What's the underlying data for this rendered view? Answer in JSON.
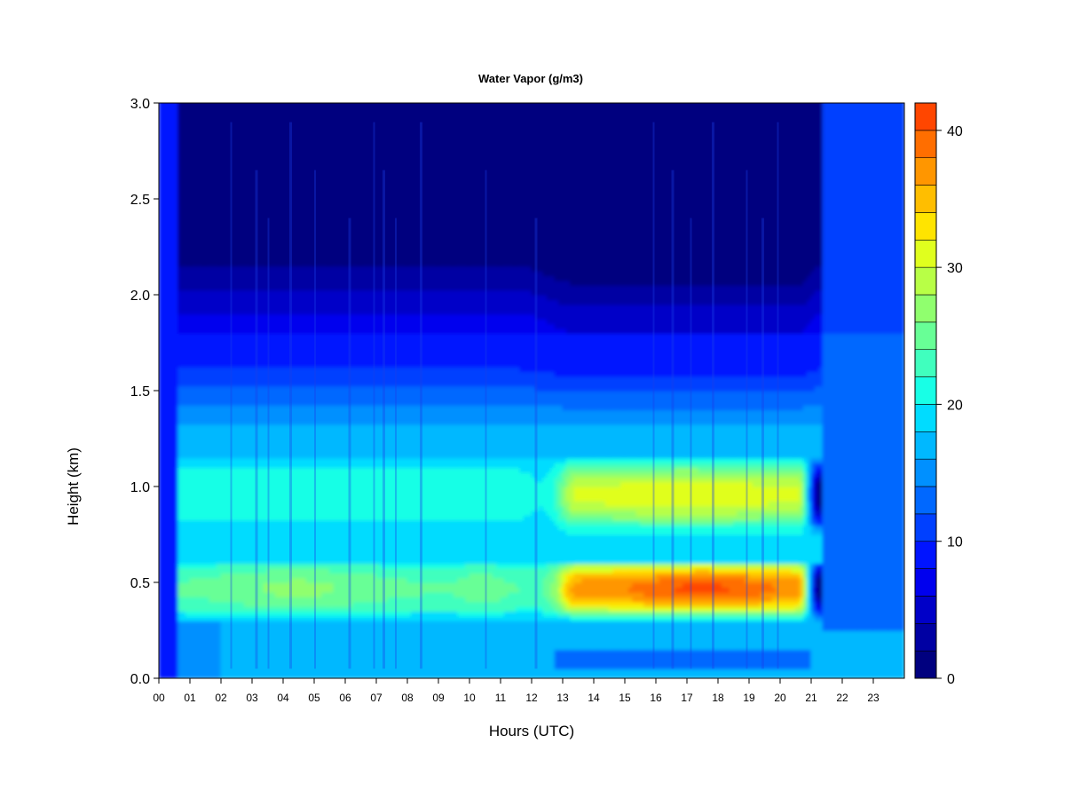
{
  "chart_data": {
    "type": "heatmap",
    "title": "Water Vapor (g/m3)",
    "xlabel": "Hours (UTC)",
    "ylabel": "Height (km)",
    "x_ticks": [
      "00",
      "01",
      "02",
      "03",
      "04",
      "05",
      "06",
      "07",
      "08",
      "09",
      "10",
      "11",
      "12",
      "13",
      "14",
      "15",
      "16",
      "17",
      "18",
      "19",
      "20",
      "21",
      "22",
      "23"
    ],
    "y_ticks": [
      "0.0",
      "0.5",
      "1.0",
      "1.5",
      "2.0",
      "2.5",
      "3.0"
    ],
    "xlim": [
      0,
      24
    ],
    "ylim": [
      0,
      3.0
    ],
    "colorbar": {
      "min": 0,
      "max": 42,
      "step": 2,
      "ticks": [
        "0",
        "10",
        "20",
        "30",
        "40"
      ],
      "colors": [
        "#00007f",
        "#0000a3",
        "#0000c8",
        "#0000ee",
        "#0014ff",
        "#0040ff",
        "#0068ff",
        "#0090ff",
        "#00b8ff",
        "#00dcff",
        "#18ffe6",
        "#40ffbe",
        "#68ff96",
        "#90ff6e",
        "#b8ff46",
        "#e0ff1e",
        "#ffe400",
        "#ffbe00",
        "#ff9600",
        "#ff6e00",
        "#ff4600"
      ]
    },
    "grid": false
  }
}
